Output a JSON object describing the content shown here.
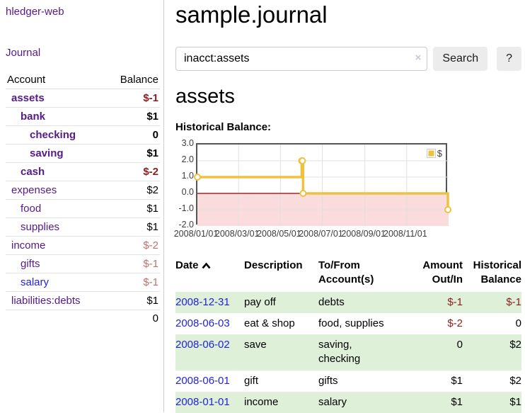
{
  "app": {
    "brand": "hledger-web",
    "nav": {
      "journal": "Journal"
    }
  },
  "sidebar": {
    "account_header": "Account",
    "balance_header": "Balance",
    "accounts": [
      {
        "label": "assets",
        "indent": 0,
        "bold": true,
        "balance": "$-1",
        "balance_style": "negative-strong",
        "link_style": "visited"
      },
      {
        "label": "bank",
        "indent": 1,
        "bold": true,
        "balance": "$1",
        "balance_style": "normal",
        "link_style": "visited"
      },
      {
        "label": "checking",
        "indent": 2,
        "bold": true,
        "balance": "0",
        "balance_style": "normal",
        "link_style": "visited"
      },
      {
        "label": "saving",
        "indent": 2,
        "bold": true,
        "balance": "$1",
        "balance_style": "normal",
        "link_style": "visited"
      },
      {
        "label": "cash",
        "indent": 1,
        "bold": true,
        "balance": "$-2",
        "balance_style": "negative-strong",
        "link_style": "visited"
      },
      {
        "label": "expenses",
        "indent": 0,
        "bold": false,
        "balance": "$2",
        "balance_style": "normal",
        "link_style": "visited"
      },
      {
        "label": "food",
        "indent": 1,
        "bold": false,
        "balance": "$1",
        "balance_style": "normal",
        "link_style": "visited"
      },
      {
        "label": "supplies",
        "indent": 1,
        "bold": false,
        "balance": "$1",
        "balance_style": "normal",
        "link_style": "visited"
      },
      {
        "label": "income",
        "indent": 0,
        "bold": false,
        "balance": "$-2",
        "balance_style": "negative-soft",
        "link_style": "visited"
      },
      {
        "label": "gifts",
        "indent": 1,
        "bold": false,
        "balance": "$-1",
        "balance_style": "negative-soft",
        "link_style": "visited"
      },
      {
        "label": "salary",
        "indent": 1,
        "bold": false,
        "balance": "$-1",
        "balance_style": "negative-soft",
        "link_style": "unvisited"
      },
      {
        "label": "liabilities:debts",
        "indent": 0,
        "bold": false,
        "balance": "$1",
        "balance_style": "normal",
        "link_style": "visited"
      }
    ],
    "total": "0"
  },
  "main": {
    "title": "sample.journal",
    "search": {
      "value": "inacct:assets",
      "clear_icon": "×",
      "search_button": "Search",
      "help_button": "?"
    },
    "account_heading": "assets",
    "chart_heading": "Historical Balance:"
  },
  "chart_data": {
    "type": "line",
    "step": true,
    "title": "Historical Balance:",
    "legend": {
      "label": "$",
      "color": "#edc240",
      "position": "top-right"
    },
    "x_start": "2008-01-01",
    "x_end": "2009-01-01",
    "xticks": [
      {
        "label": "2008/01/01",
        "date": "2008-01-01"
      },
      {
        "label": "2008/03/01",
        "date": "2008-03-01"
      },
      {
        "label": "2008/05/01",
        "date": "2008-05-01"
      },
      {
        "label": "2008/07/01",
        "date": "2008-07-01"
      },
      {
        "label": "2008/09/01",
        "date": "2008-09-01"
      },
      {
        "label": "2008/11/01",
        "date": "2008-11-01"
      }
    ],
    "yticks": [
      {
        "label": "3.0",
        "value": 3
      },
      {
        "label": "2.0",
        "value": 2
      },
      {
        "label": "1.0",
        "value": 1
      },
      {
        "label": "0.0",
        "value": 0
      },
      {
        "label": "-1.0",
        "value": -1
      },
      {
        "label": "-2.0",
        "value": -2
      }
    ],
    "ylim": [
      -2,
      3
    ],
    "grid": true,
    "negative_region_color": "#fbdcdc",
    "zero_line_color": "#8b0000",
    "line_color": "#edc240",
    "series": [
      {
        "name": "$",
        "color": "#edc240",
        "points": [
          {
            "date": "2008-01-01",
            "value": 1
          },
          {
            "date": "2008-06-01",
            "value": 2
          },
          {
            "date": "2008-06-02",
            "value": 2
          },
          {
            "date": "2008-06-03",
            "value": 0
          },
          {
            "date": "2008-12-31",
            "value": -1
          }
        ]
      }
    ]
  },
  "register": {
    "headers": {
      "date": "Date",
      "description": "Description",
      "accounts": "To/From Account(s)",
      "amount": "Amount Out/In",
      "balance": "Historical Balance"
    },
    "sort": {
      "column": "date",
      "direction": "ascending"
    },
    "rows": [
      {
        "date": "2008-12-31",
        "description": "pay off",
        "accounts": "debts",
        "amount": "$-1",
        "amount_negative": true,
        "balance": "$-1",
        "balance_negative": true,
        "shaded": true
      },
      {
        "date": "2008-06-03",
        "description": "eat & shop",
        "accounts": "food, supplies",
        "amount": "$-2",
        "amount_negative": true,
        "balance": "0",
        "balance_negative": false,
        "shaded": false
      },
      {
        "date": "2008-06-02",
        "description": "save",
        "accounts": "saving, checking",
        "amount": "0",
        "amount_negative": false,
        "balance": "$2",
        "balance_negative": false,
        "shaded": true
      },
      {
        "date": "2008-06-01",
        "description": "gift",
        "accounts": "gifts",
        "amount": "$1",
        "amount_negative": false,
        "balance": "$2",
        "balance_negative": false,
        "shaded": false
      },
      {
        "date": "2008-01-01",
        "description": "income",
        "accounts": "salary",
        "amount": "$1",
        "amount_negative": false,
        "balance": "$1",
        "balance_negative": false,
        "shaded": true
      }
    ]
  },
  "colors": {
    "link_visited": "#551a8b",
    "link_unvisited": "#2222dd",
    "negative_strong": "#8f1d1d",
    "negative_soft": "#c1706f",
    "row_shaded": "#dff0d8",
    "chart_line": "#edc240"
  }
}
